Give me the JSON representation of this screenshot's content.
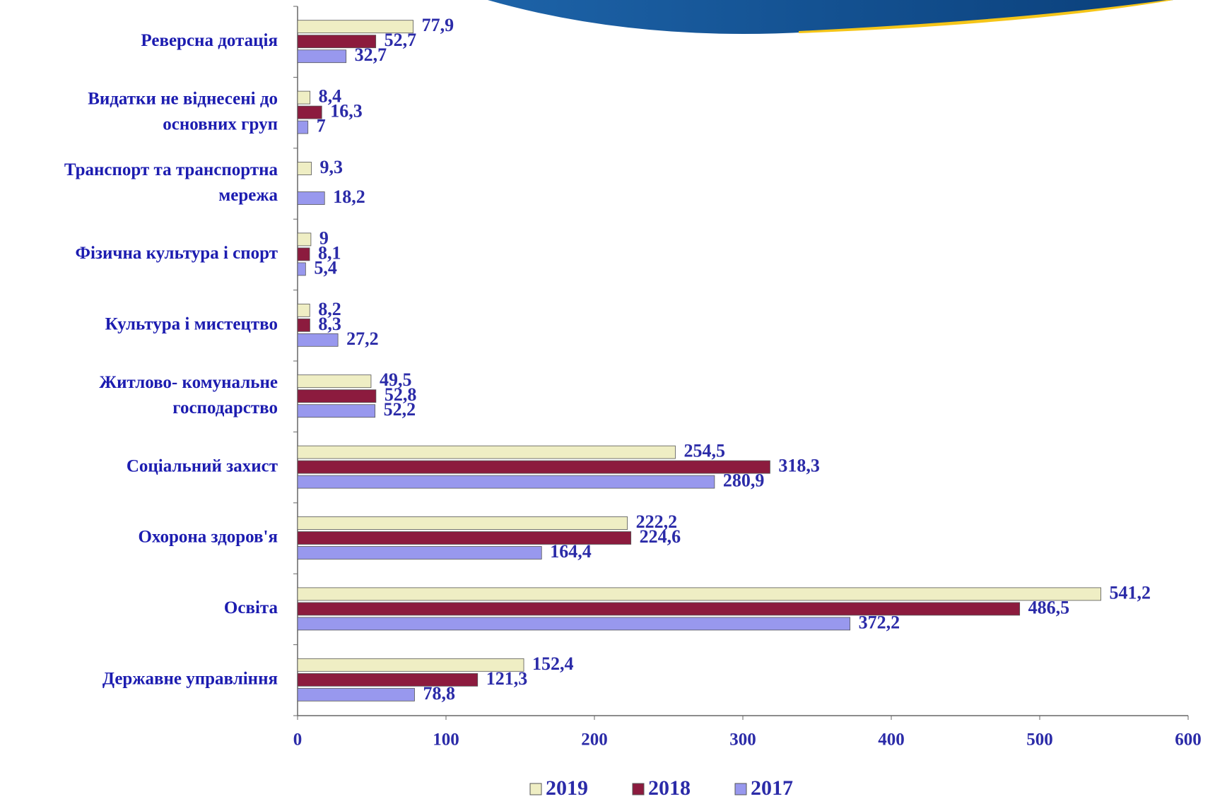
{
  "chart_data": {
    "type": "bar",
    "orientation": "horizontal",
    "categories": [
      "Реверсна дотація",
      "Видатки не віднесені до\nосновних груп",
      "Транспорт та транспортна\nмережа",
      "Фізична культура і спорт",
      "Культура  і мистецтво",
      "Житлово- комунальне\nгосподарство",
      "Соціальний  захист",
      "Охорона здоров'я",
      "Освіта",
      "Державне управління"
    ],
    "series": [
      {
        "name": "2019",
        "color": "#efeec4",
        "values": [
          77.9,
          8.4,
          9.3,
          9,
          8.2,
          49.5,
          254.5,
          222.2,
          541.2,
          152.4
        ],
        "value_labels": [
          "77,9",
          "8,4",
          "9,3",
          "9",
          "8,2",
          "49,5",
          "254,5",
          "222,2",
          "541,2",
          "152,4"
        ]
      },
      {
        "name": "2018",
        "color": "#8c1b3e",
        "values": [
          52.7,
          16.3,
          null,
          8.1,
          8.3,
          52.8,
          318.3,
          224.6,
          486.5,
          121.3
        ],
        "value_labels": [
          "52,7",
          "16,3",
          null,
          "8,1",
          "8,3",
          "52,8",
          "318,3",
          "224,6",
          "486,5",
          "121,3"
        ]
      },
      {
        "name": "2017",
        "color": "#9898ee",
        "values": [
          32.7,
          7,
          18.2,
          5.4,
          27.2,
          52.2,
          280.9,
          164.4,
          372.2,
          78.8
        ],
        "value_labels": [
          "32,7",
          "7",
          "18,2",
          "5,4",
          "27,2",
          "52,2",
          "280,9",
          "164,4",
          "372,2",
          "78,8"
        ]
      }
    ],
    "xlim": [
      0,
      600
    ],
    "xticks": [
      0,
      100,
      200,
      300,
      400,
      500,
      600
    ],
    "legend": "bottom"
  }
}
